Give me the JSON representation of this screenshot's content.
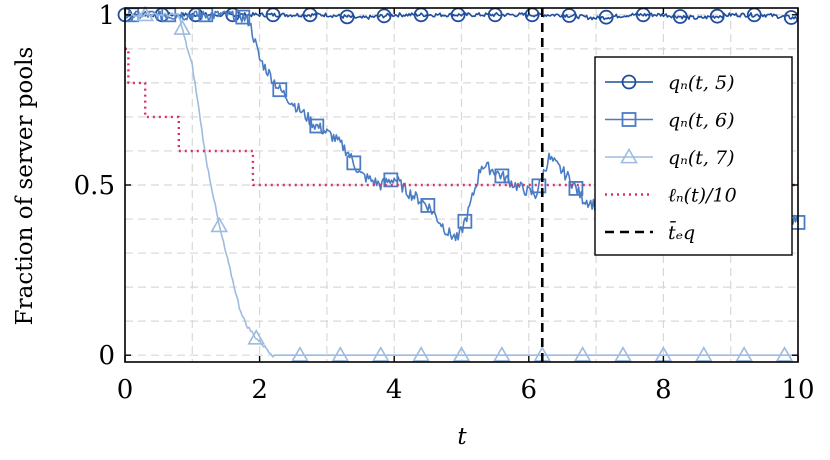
{
  "chart_data": {
    "type": "line",
    "title": "",
    "xlabel": "t",
    "ylabel": "Fraction of server pools",
    "xlim": [
      0,
      10
    ],
    "ylim": [
      -0.02,
      1.02
    ],
    "x_ticks": [
      "0",
      "2",
      "4",
      "6",
      "8",
      "10"
    ],
    "y_ticks": [
      "0",
      "0.5",
      "1"
    ],
    "x_tick_values": [
      0,
      2,
      4,
      6,
      8,
      10
    ],
    "y_tick_values": [
      0,
      0.5,
      1
    ],
    "grid": "dashed",
    "legend_position": "right",
    "vline": {
      "x": 6.2,
      "label": "t̄_eq",
      "color": "#000000",
      "style": "dashed"
    },
    "series": [
      {
        "name": "q_n(t, 5)",
        "legend_label": "qₙ(t, 5)",
        "color": "#1f4e9c",
        "marker": "circle",
        "style": "solid",
        "points": [
          [
            0,
            1
          ],
          [
            0.5,
            1
          ],
          [
            1,
            1
          ],
          [
            1.5,
            1
          ],
          [
            2,
            1
          ],
          [
            2.5,
            1
          ],
          [
            3,
            1
          ],
          [
            3.5,
            0.99
          ],
          [
            4,
            1
          ],
          [
            4.5,
            1
          ],
          [
            5,
            1
          ],
          [
            5.5,
            1
          ],
          [
            6,
            1
          ],
          [
            6.5,
            1
          ],
          [
            7,
            0.99
          ],
          [
            7.5,
            1
          ],
          [
            8,
            1
          ],
          [
            8.5,
            0.99
          ],
          [
            9,
            1
          ],
          [
            9.5,
            1
          ],
          [
            10,
            0.99
          ]
        ],
        "markers_x": [
          0,
          0.55,
          1.05,
          1.6,
          2.2,
          2.75,
          3.3,
          3.85,
          4.4,
          4.95,
          5.5,
          6.05,
          6.6,
          7.15,
          7.7,
          8.25,
          8.8,
          9.35,
          9.9
        ]
      },
      {
        "name": "q_n(t, 6)",
        "legend_label": "qₙ(t, 6)",
        "color": "#4a7cc4",
        "marker": "square",
        "style": "solid",
        "points": [
          [
            0,
            1
          ],
          [
            1.7,
            1
          ],
          [
            1.85,
            0.98
          ],
          [
            2.0,
            0.87
          ],
          [
            2.3,
            0.78
          ],
          [
            2.6,
            0.72
          ],
          [
            2.8,
            0.68
          ],
          [
            3.1,
            0.64
          ],
          [
            3.3,
            0.6
          ],
          [
            3.5,
            0.53
          ],
          [
            3.8,
            0.5
          ],
          [
            4.0,
            0.52
          ],
          [
            4.2,
            0.48
          ],
          [
            4.5,
            0.44
          ],
          [
            4.8,
            0.36
          ],
          [
            4.95,
            0.34
          ],
          [
            5.1,
            0.42
          ],
          [
            5.3,
            0.56
          ],
          [
            5.5,
            0.54
          ],
          [
            5.8,
            0.5
          ],
          [
            6.1,
            0.47
          ],
          [
            6.3,
            0.58
          ],
          [
            6.6,
            0.52
          ],
          [
            6.8,
            0.46
          ],
          [
            7.1,
            0.43
          ],
          [
            7.3,
            0.48
          ],
          [
            7.5,
            0.44
          ],
          [
            7.8,
            0.46
          ],
          [
            8.1,
            0.46
          ],
          [
            8.4,
            0.43
          ],
          [
            8.7,
            0.47
          ],
          [
            9.0,
            0.46
          ],
          [
            9.3,
            0.44
          ],
          [
            9.6,
            0.46
          ],
          [
            9.85,
            0.4
          ],
          [
            10,
            0.39
          ]
        ],
        "markers_x": [
          0.1,
          0.65,
          1.2,
          1.75,
          2.3,
          2.85,
          3.4,
          3.95,
          4.5,
          5.05,
          5.6,
          6.15,
          6.7,
          7.25,
          7.8,
          8.35,
          8.9,
          9.45,
          10.0
        ]
      },
      {
        "name": "q_n(t, 7)",
        "legend_label": "qₙ(t, 7)",
        "color": "#9ebbe0",
        "marker": "triangle",
        "style": "solid",
        "points": [
          [
            0,
            1
          ],
          [
            0.8,
            1
          ],
          [
            0.9,
            0.92
          ],
          [
            1.0,
            0.85
          ],
          [
            1.1,
            0.72
          ],
          [
            1.2,
            0.58
          ],
          [
            1.3,
            0.48
          ],
          [
            1.4,
            0.38
          ],
          [
            1.5,
            0.3
          ],
          [
            1.6,
            0.22
          ],
          [
            1.7,
            0.14
          ],
          [
            1.8,
            0.09
          ],
          [
            1.95,
            0.05
          ],
          [
            2.1,
            0.02
          ],
          [
            2.2,
            0
          ],
          [
            10,
            0
          ]
        ],
        "markers_x": [
          0.3,
          0.85,
          1.4,
          1.95,
          2.6,
          3.2,
          3.8,
          4.4,
          5.0,
          5.6,
          6.2,
          6.8,
          7.4,
          8.0,
          8.6,
          9.2,
          9.8
        ]
      },
      {
        "name": "ℓ_n(t)/10",
        "legend_label": "ℓₙ(t)/10",
        "color": "#d6336c",
        "marker": "none",
        "style": "dotted",
        "step": true,
        "points": [
          [
            0,
            0.9
          ],
          [
            0.05,
            0.8
          ],
          [
            0.3,
            0.7
          ],
          [
            0.8,
            0.6
          ],
          [
            1.9,
            0.5
          ],
          [
            10,
            0.5
          ]
        ]
      },
      {
        "name": "t̄_eq",
        "legend_label": "t̄ₑq",
        "color": "#000000",
        "marker": "none",
        "style": "dashed",
        "vertical_at": 6.2
      }
    ]
  }
}
